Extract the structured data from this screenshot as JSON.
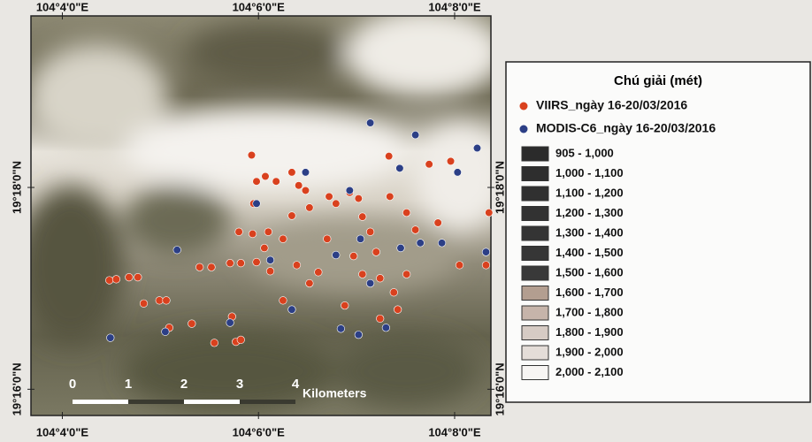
{
  "map": {
    "xlim": [
      3.68,
      8.37
    ],
    "ylim": [
      15.74,
      19.7
    ],
    "xticks": [
      {
        "value": 4,
        "label": "104°4'0\"E"
      },
      {
        "value": 6,
        "label": "104°6'0\"E"
      },
      {
        "value": 8,
        "label": "104°8'0\"E"
      }
    ],
    "yticks": [
      {
        "value": 16,
        "label": "19°16'0\"N"
      },
      {
        "value": 18,
        "label": "19°18'0\"N"
      }
    ],
    "series": [
      {
        "name": "VIIRS_ngày 16-20/03/2016",
        "color": "#d9411e",
        "lon": [
          4.48,
          4.55,
          4.68,
          4.77,
          4.83,
          4.99,
          5.06,
          5.09,
          5.32,
          5.4,
          5.52,
          5.55,
          5.73,
          5.77,
          5.82,
          5.71,
          5.82,
          5.98,
          5.93,
          5.98,
          6.07,
          5.95,
          5.8,
          5.94,
          6.1,
          6.06,
          6.25,
          6.34,
          6.18,
          6.34,
          6.41,
          6.48,
          6.52,
          6.72,
          6.79,
          6.93,
          7.02,
          7.06,
          7.14,
          7.2,
          7.33,
          7.34,
          7.51,
          7.6,
          7.74,
          7.83,
          7.96,
          8.05,
          8.32,
          8.35,
          6.12,
          6.39,
          6.52,
          6.61,
          6.88,
          7.06,
          7.24,
          7.38,
          7.51,
          6.97,
          6.7,
          6.25,
          7.24,
          7.42
        ],
        "lat": [
          17.08,
          17.09,
          17.11,
          17.11,
          16.85,
          16.88,
          16.88,
          16.61,
          16.65,
          17.21,
          17.21,
          16.46,
          16.72,
          16.47,
          16.49,
          17.25,
          17.25,
          17.26,
          18.32,
          18.06,
          18.11,
          17.84,
          17.56,
          17.54,
          17.56,
          17.4,
          17.49,
          17.72,
          18.06,
          18.15,
          18.02,
          17.97,
          17.8,
          17.91,
          17.84,
          17.95,
          17.89,
          17.71,
          17.56,
          17.36,
          18.31,
          17.91,
          17.75,
          17.58,
          18.23,
          17.65,
          18.26,
          17.23,
          17.23,
          17.75,
          17.17,
          17.23,
          17.05,
          17.16,
          16.83,
          17.14,
          17.1,
          16.96,
          17.14,
          17.32,
          17.49,
          16.88,
          16.7,
          16.79
        ]
      },
      {
        "name": "MODIS-C6_ngày 16-20/03/2016",
        "color": "#2c3f86",
        "lon": [
          4.49,
          5.17,
          5.05,
          5.71,
          6.12,
          6.34,
          5.98,
          6.79,
          6.84,
          7.02,
          7.14,
          7.04,
          7.14,
          7.3,
          7.44,
          7.6,
          7.65,
          7.87,
          8.03,
          8.23,
          8.32,
          7.45,
          6.48,
          6.93
        ],
        "lat": [
          16.51,
          17.38,
          16.57,
          16.66,
          17.28,
          16.79,
          17.84,
          17.33,
          16.6,
          16.54,
          18.64,
          17.49,
          17.05,
          16.61,
          18.19,
          18.52,
          17.45,
          17.45,
          18.15,
          18.39,
          17.36,
          17.4,
          18.15,
          17.97
        ]
      }
    ],
    "scale_bar": {
      "labels": [
        "0",
        "1",
        "2",
        "3",
        "4"
      ],
      "unit": "Kilometers"
    }
  },
  "legend": {
    "title": "Chú giải (mét)",
    "classes": [
      {
        "label": "905 - 1,000",
        "color": "#2b2b2b"
      },
      {
        "label": "1,000 - 1,100",
        "color": "#2e2e2e"
      },
      {
        "label": "1,100 - 1,200",
        "color": "#303030"
      },
      {
        "label": "1,200 - 1,300",
        "color": "#323232"
      },
      {
        "label": "1,300 - 1,400",
        "color": "#343434"
      },
      {
        "label": "1,400 - 1,500",
        "color": "#363636"
      },
      {
        "label": "1,500 - 1,600",
        "color": "#393939"
      },
      {
        "label": "1,600 - 1,700",
        "color": "#b39e90"
      },
      {
        "label": "1,700 - 1,800",
        "color": "#c6b4aa"
      },
      {
        "label": "1,800 - 1,900",
        "color": "#d6cbc4"
      },
      {
        "label": "1,900 - 2,000",
        "color": "#e4ddd8"
      },
      {
        "label": "2,000 - 2,100",
        "color": "#f7f5f3"
      }
    ]
  }
}
